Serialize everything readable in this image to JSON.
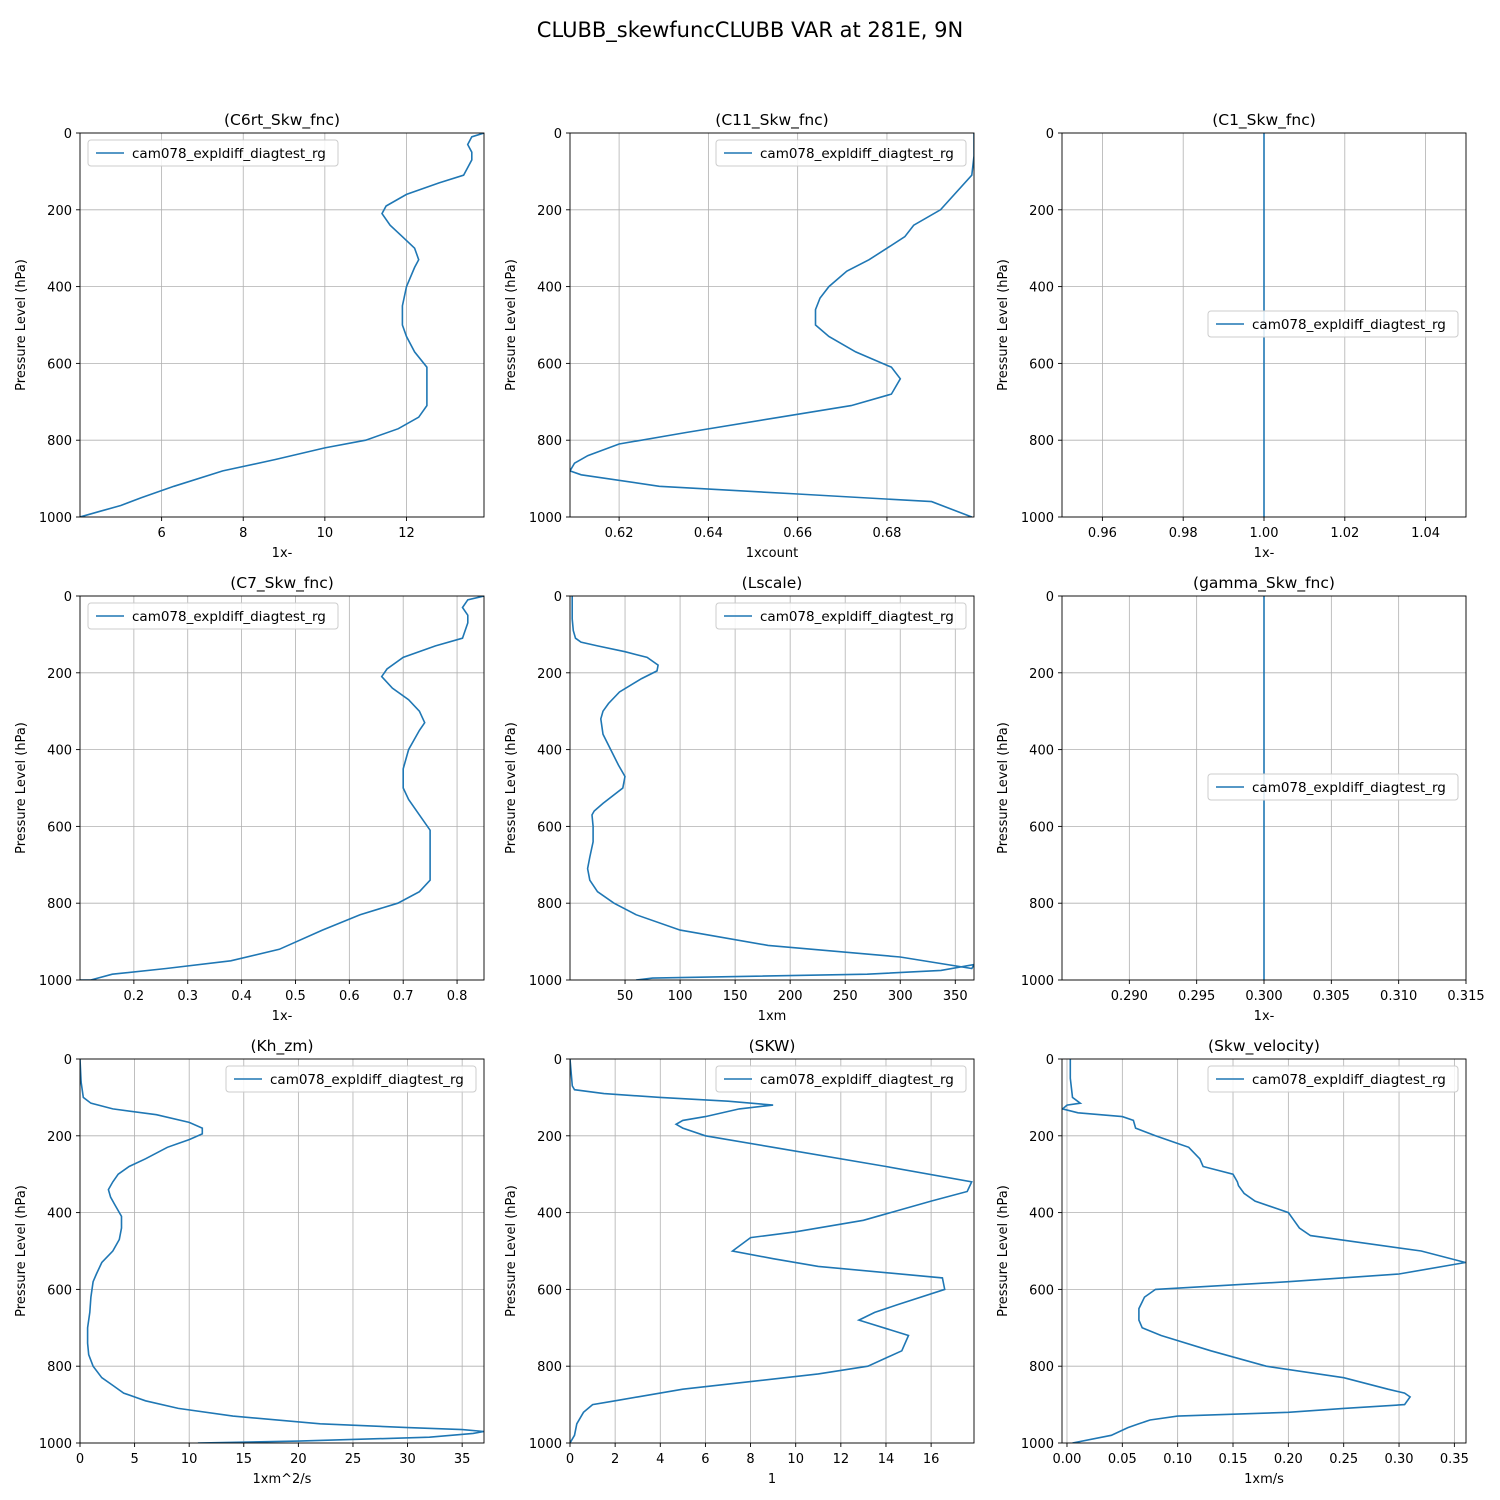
{
  "figure": {
    "title": "CLUBB_skewfuncCLUBB VAR at 281E, 9N"
  },
  "chart_data": [
    {
      "type": "line",
      "title": "(C6rt_Skw_fnc)",
      "xlabel": "1x-",
      "ylabel": "Pressure Level (hPa)",
      "xlim": [
        4,
        13.9
      ],
      "ylim": [
        1000,
        0
      ],
      "xticks": [
        "6",
        "8",
        "10",
        "12"
      ],
      "xtick_values": [
        6,
        8,
        10,
        12
      ],
      "yticks": [
        "0",
        "200",
        "400",
        "600",
        "800",
        "1000"
      ],
      "grid": true,
      "legend_position": "upper left",
      "legend": [
        "cam078_expldiff_diagtest_rg"
      ],
      "series": [
        {
          "name": "cam078_expldiff_diagtest_rg",
          "color": "#1f77b4",
          "x": [
            13.9,
            13.6,
            13.5,
            13.6,
            13.6,
            13.4,
            12.8,
            12,
            11.5,
            11.4,
            11.6,
            11.9,
            12.2,
            12.3,
            12.2,
            12.0,
            11.9,
            11.9,
            12.0,
            12.2,
            12.5,
            12.5,
            12.5,
            12.3,
            11.8,
            11.0,
            10.0,
            8.8,
            7.5,
            6.3,
            5.5,
            5.0,
            4.5,
            4.0
          ],
          "y": [
            0,
            10,
            30,
            50,
            70,
            110,
            130,
            160,
            190,
            210,
            240,
            270,
            300,
            330,
            350,
            400,
            450,
            500,
            530,
            570,
            610,
            650,
            710,
            740,
            770,
            800,
            820,
            850,
            880,
            920,
            950,
            970,
            985,
            1000
          ]
        }
      ]
    },
    {
      "type": "line",
      "title": "(C11_Skw_fnc)",
      "xlabel": "1xcount",
      "ylabel": "Pressure Level (hPa)",
      "xlim": [
        0.609,
        0.6995
      ],
      "ylim": [
        1000,
        0
      ],
      "xticks": [
        "0.62",
        "0.64",
        "0.66",
        "0.68"
      ],
      "xtick_values": [
        0.62,
        0.64,
        0.66,
        0.68
      ],
      "yticks": [
        "0",
        "200",
        "400",
        "600",
        "800",
        "1000"
      ],
      "grid": true,
      "legend_position": "upper right",
      "legend": [
        "cam078_expldiff_diagtest_rg"
      ],
      "series": [
        {
          "name": "cam078_expldiff_diagtest_rg",
          "color": "#1f77b4",
          "x": [
            0.6995,
            0.6995,
            0.699,
            0.692,
            0.686,
            0.684,
            0.68,
            0.676,
            0.671,
            0.667,
            0.665,
            0.664,
            0.664,
            0.664,
            0.667,
            0.673,
            0.681,
            0.683,
            0.681,
            0.672,
            0.656,
            0.635,
            0.62,
            0.613,
            0.61,
            0.609,
            0.6115,
            0.629,
            0.66,
            0.69,
            0.699
          ],
          "y": [
            0,
            60,
            110,
            200,
            240,
            270,
            300,
            330,
            360,
            400,
            430,
            460,
            480,
            500,
            530,
            570,
            610,
            640,
            680,
            710,
            740,
            780,
            810,
            840,
            860,
            880,
            890,
            920,
            940,
            960,
            1000
          ]
        }
      ]
    },
    {
      "type": "line",
      "title": "(C1_Skw_fnc)",
      "xlabel": "1x-",
      "ylabel": "Pressure Level (hPa)",
      "xlim": [
        0.95,
        1.05
      ],
      "ylim": [
        1000,
        0
      ],
      "xticks": [
        "0.96",
        "0.98",
        "1.00",
        "1.02",
        "1.04"
      ],
      "xtick_values": [
        0.96,
        0.98,
        1.0,
        1.02,
        1.04
      ],
      "yticks": [
        "0",
        "200",
        "400",
        "600",
        "800",
        "1000"
      ],
      "grid": true,
      "legend_position": "center right",
      "legend": [
        "cam078_expldiff_diagtest_rg"
      ],
      "series": [
        {
          "name": "cam078_expldiff_diagtest_rg",
          "color": "#1f77b4",
          "x": [
            1.0,
            1.0
          ],
          "y": [
            0,
            1000
          ]
        }
      ]
    },
    {
      "type": "line",
      "title": "(C7_Skw_fnc)",
      "xlabel": "1x-",
      "ylabel": "Pressure Level (hPa)",
      "xlim": [
        0.1,
        0.85
      ],
      "ylim": [
        1000,
        0
      ],
      "xticks": [
        "0.2",
        "0.3",
        "0.4",
        "0.5",
        "0.6",
        "0.7",
        "0.8"
      ],
      "xtick_values": [
        0.2,
        0.3,
        0.4,
        0.5,
        0.6,
        0.7,
        0.8
      ],
      "yticks": [
        "0",
        "200",
        "400",
        "600",
        "800",
        "1000"
      ],
      "grid": true,
      "legend_position": "upper left",
      "legend": [
        "cam078_expldiff_diagtest_rg"
      ],
      "series": [
        {
          "name": "cam078_expldiff_diagtest_rg",
          "color": "#1f77b4",
          "x": [
            0.85,
            0.82,
            0.81,
            0.82,
            0.82,
            0.81,
            0.76,
            0.7,
            0.67,
            0.66,
            0.68,
            0.71,
            0.73,
            0.74,
            0.73,
            0.71,
            0.7,
            0.7,
            0.71,
            0.73,
            0.75,
            0.75,
            0.75,
            0.73,
            0.69,
            0.62,
            0.55,
            0.47,
            0.38,
            0.26,
            0.16,
            0.12,
            0.1
          ],
          "y": [
            0,
            10,
            30,
            50,
            70,
            110,
            130,
            160,
            190,
            210,
            240,
            270,
            300,
            330,
            350,
            400,
            450,
            500,
            530,
            570,
            610,
            710,
            740,
            770,
            800,
            830,
            870,
            920,
            950,
            970,
            985,
            1000,
            1000
          ]
        }
      ]
    },
    {
      "type": "line",
      "title": "(Lscale)",
      "xlabel": "1xm",
      "ylabel": "Pressure Level (hPa)",
      "xlim": [
        0,
        367
      ],
      "ylim": [
        1000,
        0
      ],
      "xticks": [
        "50",
        "100",
        "150",
        "200",
        "250",
        "300",
        "350"
      ],
      "xtick_values": [
        50,
        100,
        150,
        200,
        250,
        300,
        350
      ],
      "yticks": [
        "0",
        "200",
        "400",
        "600",
        "800",
        "1000"
      ],
      "grid": true,
      "legend_position": "upper right",
      "legend": [
        "cam078_expldiff_diagtest_rg"
      ],
      "series": [
        {
          "name": "cam078_expldiff_diagtest_rg",
          "color": "#1f77b4",
          "x": [
            2,
            2,
            3,
            5,
            10,
            25,
            50,
            70,
            80,
            79,
            65,
            45,
            35,
            30,
            28,
            30,
            37,
            44,
            50,
            48,
            30,
            22,
            20,
            21,
            21,
            18,
            16,
            18,
            25,
            40,
            60,
            100,
            180,
            300,
            365,
            367,
            337,
            270,
            75,
            60
          ],
          "y": [
            0,
            60,
            90,
            110,
            120,
            130,
            145,
            160,
            180,
            195,
            215,
            250,
            280,
            300,
            320,
            360,
            400,
            440,
            470,
            500,
            540,
            560,
            570,
            600,
            640,
            680,
            710,
            740,
            770,
            800,
            830,
            870,
            910,
            940,
            970,
            960,
            975,
            985,
            995,
            1000
          ]
        }
      ]
    },
    {
      "type": "line",
      "title": "(gamma_Skw_fnc)",
      "xlabel": "1x-",
      "ylabel": "Pressure Level (hPa)",
      "xlim": [
        0.285,
        0.315
      ],
      "ylim": [
        1000,
        0
      ],
      "xticks": [
        "0.290",
        "0.295",
        "0.300",
        "0.305",
        "0.310",
        "0.315"
      ],
      "xtick_values": [
        0.29,
        0.295,
        0.3,
        0.305,
        0.31,
        0.315
      ],
      "yticks": [
        "0",
        "200",
        "400",
        "600",
        "800",
        "1000"
      ],
      "grid": true,
      "legend_position": "center right",
      "legend": [
        "cam078_expldiff_diagtest_rg"
      ],
      "series": [
        {
          "name": "cam078_expldiff_diagtest_rg",
          "color": "#1f77b4",
          "x": [
            0.3,
            0.3
          ],
          "y": [
            0,
            1000
          ]
        }
      ]
    },
    {
      "type": "line",
      "title": "(Kh_zm)",
      "xlabel": "1xm^2/s",
      "ylabel": "Pressure Level (hPa)",
      "xlim": [
        0,
        37
      ],
      "ylim": [
        1000,
        0
      ],
      "xticks": [
        "0",
        "5",
        "10",
        "15",
        "20",
        "25",
        "30",
        "35"
      ],
      "xtick_values": [
        0,
        5,
        10,
        15,
        20,
        25,
        30,
        35
      ],
      "yticks": [
        "0",
        "200",
        "400",
        "600",
        "800",
        "1000"
      ],
      "grid": true,
      "legend_position": "upper right",
      "legend": [
        "cam078_expldiff_diagtest_rg"
      ],
      "series": [
        {
          "name": "cam078_expldiff_diagtest_rg",
          "color": "#1f77b4",
          "x": [
            0,
            0.1,
            0.3,
            1,
            3,
            7,
            10,
            11.2,
            11.2,
            10,
            8,
            6,
            4.5,
            3.5,
            3,
            2.6,
            2.8,
            3.2,
            3.8,
            3.8,
            3.6,
            3,
            2,
            1.5,
            1.2,
            1.0,
            0.9,
            0.7,
            0.7,
            0.8,
            1.2,
            2,
            3,
            4,
            6,
            9,
            14,
            22,
            30,
            35,
            37,
            36,
            32,
            20,
            10.8
          ],
          "y": [
            0,
            60,
            100,
            115,
            130,
            145,
            165,
            180,
            195,
            210,
            230,
            260,
            280,
            300,
            320,
            340,
            360,
            380,
            410,
            440,
            470,
            500,
            530,
            560,
            580,
            620,
            660,
            700,
            740,
            770,
            800,
            830,
            850,
            870,
            890,
            910,
            930,
            950,
            960,
            965,
            970,
            975,
            985,
            995,
            1000
          ]
        }
      ]
    },
    {
      "type": "line",
      "title": "(SKW)",
      "xlabel": "1",
      "ylabel": "Pressure Level (hPa)",
      "xlim": [
        0,
        17.9
      ],
      "ylim": [
        1000,
        0
      ],
      "xticks": [
        "0",
        "2",
        "4",
        "6",
        "8",
        "10",
        "12",
        "14",
        "16"
      ],
      "xtick_values": [
        0,
        2,
        4,
        6,
        8,
        10,
        12,
        14,
        16
      ],
      "yticks": [
        "0",
        "200",
        "400",
        "600",
        "800",
        "1000"
      ],
      "grid": true,
      "legend_position": "upper right",
      "legend": [
        "cam078_expldiff_diagtest_rg"
      ],
      "series": [
        {
          "name": "cam078_expldiff_diagtest_rg",
          "color": "#1f77b4",
          "x": [
            0.0,
            0.1,
            0.2,
            1.5,
            4,
            7,
            9,
            7.5,
            6,
            5,
            4.7,
            5,
            6,
            9,
            14,
            17.8,
            17.6,
            16,
            13,
            10,
            8,
            7.2,
            9,
            11,
            16.5,
            16.6,
            14.5,
            13.5,
            12.8,
            15,
            14.7,
            13.2,
            11,
            8,
            5,
            3,
            2,
            1,
            0.6,
            0.3,
            0.2,
            0.0
          ],
          "y": [
            0,
            70,
            80,
            90,
            100,
            110,
            120,
            130,
            150,
            160,
            170,
            180,
            200,
            230,
            280,
            320,
            345,
            370,
            420,
            450,
            465,
            500,
            520,
            540,
            570,
            600,
            640,
            660,
            680,
            720,
            760,
            800,
            820,
            840,
            860,
            880,
            890,
            900,
            920,
            950,
            980,
            1000
          ]
        }
      ]
    },
    {
      "type": "line",
      "title": "(Skw_velocity)",
      "xlabel": "1xm/s",
      "ylabel": "Pressure Level (hPa)",
      "xlim": [
        -0.0045,
        0.3605
      ],
      "ylim": [
        1000,
        0
      ],
      "xticks": [
        "0.00",
        "0.05",
        "0.10",
        "0.15",
        "0.20",
        "0.25",
        "0.30",
        "0.35"
      ],
      "xtick_values": [
        0.0,
        0.05,
        0.1,
        0.15,
        0.2,
        0.25,
        0.3,
        0.35
      ],
      "yticks": [
        "0",
        "200",
        "400",
        "600",
        "800",
        "1000"
      ],
      "grid": true,
      "legend_position": "upper right",
      "legend": [
        "cam078_expldiff_diagtest_rg"
      ],
      "series": [
        {
          "name": "cam078_expldiff_diagtest_rg",
          "color": "#1f77b4",
          "x": [
            0.003,
            0.003,
            0.005,
            0.012,
            0.0,
            -0.004,
            0.01,
            0.05,
            0.06,
            0.062,
            0.08,
            0.11,
            0.12,
            0.123,
            0.15,
            0.154,
            0.155,
            0.16,
            0.17,
            0.19,
            0.2,
            0.205,
            0.21,
            0.22,
            0.32,
            0.36,
            0.3,
            0.2,
            0.08,
            0.07,
            0.065,
            0.065,
            0.068,
            0.085,
            0.13,
            0.18,
            0.25,
            0.29,
            0.305,
            0.31,
            0.305,
            0.25,
            0.2,
            0.1,
            0.075,
            0.065,
            0.055,
            0.04,
            0.005
          ],
          "y": [
            0,
            50,
            100,
            115,
            120,
            130,
            140,
            150,
            160,
            180,
            200,
            230,
            260,
            280,
            300,
            320,
            330,
            350,
            370,
            390,
            400,
            420,
            440,
            460,
            500,
            530,
            560,
            580,
            600,
            620,
            650,
            680,
            700,
            720,
            760,
            800,
            830,
            860,
            870,
            880,
            900,
            910,
            920,
            930,
            940,
            950,
            960,
            980,
            1000
          ]
        }
      ]
    }
  ]
}
